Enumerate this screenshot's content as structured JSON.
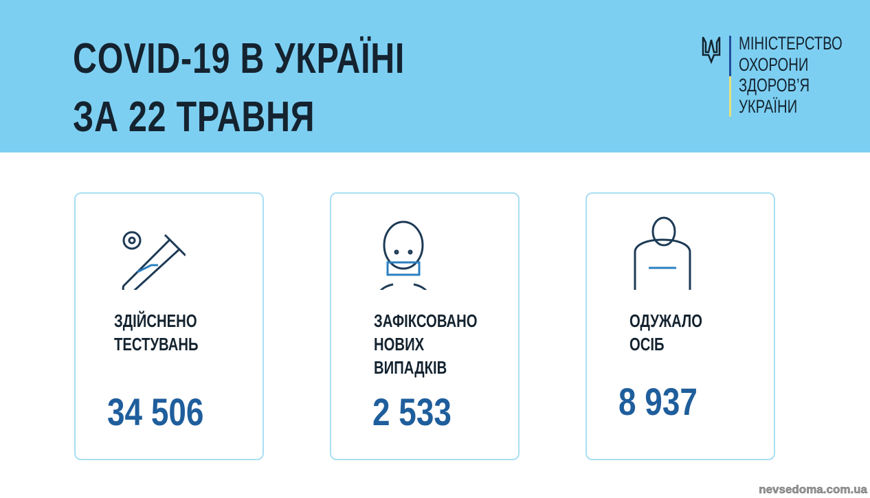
{
  "header": {
    "title_line1": "COVID-19 В УКРАЇНІ",
    "title_line2": "ЗА 22 ТРАВНЯ",
    "ministry": [
      "МІНІСТЕРСТВО",
      "ОХОРОНИ",
      "ЗДОРОВ’Я",
      "УКРАЇНИ"
    ]
  },
  "cards": [
    {
      "icon": "test-tube-virus-icon",
      "label": [
        "ЗДІЙСНЕНО",
        "ТЕСТУВАНЬ"
      ],
      "value": "34 506"
    },
    {
      "icon": "masked-person-icon",
      "label": [
        "ЗАФІКСОВАНО",
        "НОВИХ",
        "ВИПАДКІВ"
      ],
      "value": "2 533"
    },
    {
      "icon": "recovered-person-icon",
      "label": [
        "ОДУЖАЛО",
        "ОСІБ"
      ],
      "value": "8 937"
    }
  ],
  "watermark": "nevsedoma.com.ua",
  "colors": {
    "header": "#7dcff2",
    "number": "#1f5e9c",
    "border": "#a9dff3"
  }
}
